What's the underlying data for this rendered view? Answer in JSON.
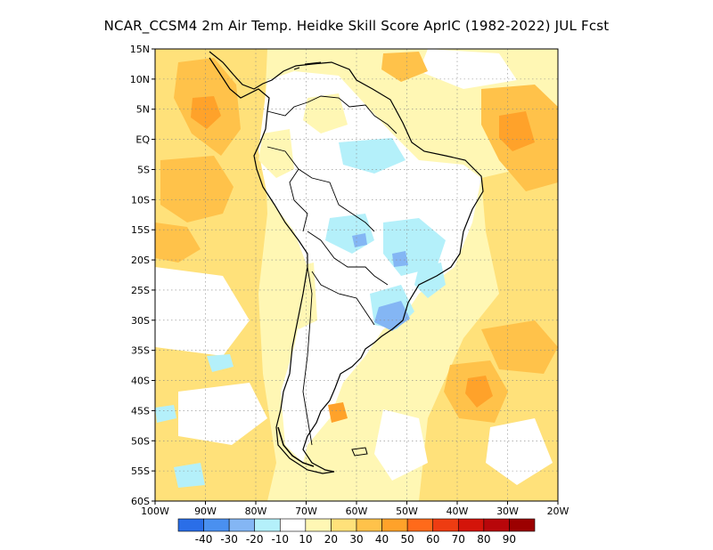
{
  "title": "NCAR_CCSM4  2m Air Temp. Heidke Skill Score AprIC (1982-2022) JUL Fcst",
  "map": {
    "lon_range": [
      -100,
      -20
    ],
    "lat_range": [
      -60,
      15
    ],
    "lat_ticks": [
      {
        "value": 15,
        "label": "15N"
      },
      {
        "value": 10,
        "label": "10N"
      },
      {
        "value": 5,
        "label": "5N"
      },
      {
        "value": 0,
        "label": "EQ"
      },
      {
        "value": -5,
        "label": "5S"
      },
      {
        "value": -10,
        "label": "10S"
      },
      {
        "value": -15,
        "label": "15S"
      },
      {
        "value": -20,
        "label": "20S"
      },
      {
        "value": -25,
        "label": "25S"
      },
      {
        "value": -30,
        "label": "30S"
      },
      {
        "value": -35,
        "label": "35S"
      },
      {
        "value": -40,
        "label": "40S"
      },
      {
        "value": -45,
        "label": "45S"
      },
      {
        "value": -50,
        "label": "50S"
      },
      {
        "value": -55,
        "label": "55S"
      },
      {
        "value": -60,
        "label": "60S"
      }
    ],
    "lon_ticks": [
      {
        "value": -100,
        "label": "100W"
      },
      {
        "value": -90,
        "label": "90W"
      },
      {
        "value": -80,
        "label": "80W"
      },
      {
        "value": -70,
        "label": "70W"
      },
      {
        "value": -60,
        "label": "60W"
      },
      {
        "value": -50,
        "label": "50W"
      },
      {
        "value": -40,
        "label": "40W"
      },
      {
        "value": -30,
        "label": "30W"
      },
      {
        "value": -20,
        "label": "20W"
      }
    ],
    "grid": true
  },
  "colorbar": {
    "labels": [
      "-40",
      "-30",
      "-20",
      "-10",
      "10",
      "20",
      "30",
      "40",
      "50",
      "60",
      "70",
      "80",
      "90"
    ],
    "colors": [
      "#2a6ee8",
      "#4a90f0",
      "#84b6f4",
      "#b4f0fa",
      "#ffffff",
      "#fff7b4",
      "#ffe17a",
      "#ffc24a",
      "#ffa22a",
      "#ff6a1a",
      "#ee3c12",
      "#d4140a",
      "#b8060a",
      "#9c0000"
    ]
  }
}
